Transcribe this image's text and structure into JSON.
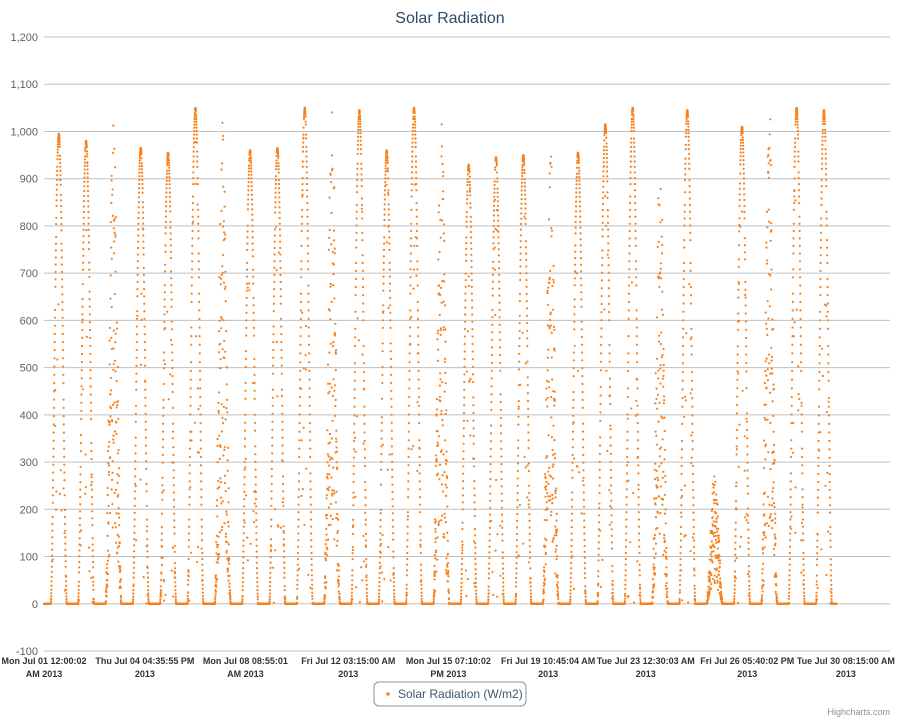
{
  "chart_data": {
    "type": "scatter",
    "title": "Solar Radiation",
    "xlabel": "",
    "ylabel": "",
    "ylim": [
      -100,
      1200
    ],
    "yticks": [
      -100,
      0,
      100,
      200,
      300,
      400,
      500,
      600,
      700,
      800,
      900,
      1000,
      1100,
      1200
    ],
    "ytick_labels": [
      "-100",
      "0",
      "100",
      "200",
      "300",
      "400",
      "500",
      "600",
      "700",
      "800",
      "900",
      "1,000",
      "1,100",
      "1,200"
    ],
    "x_range": [
      "2013-07-01 00:00",
      "2013-07-31 23:00"
    ],
    "xticks": [
      {
        "x": "2013-07-01 00:00",
        "line1": "Mon Jul 01 12:00:02",
        "line2": "AM 2013"
      },
      {
        "x": "2013-07-04 16:35",
        "line1": "Thu Jul 04 04:35:55 PM",
        "line2": "2013"
      },
      {
        "x": "2013-07-08 08:55",
        "line1": "Mon Jul 08 08:55:01",
        "line2": "AM 2013"
      },
      {
        "x": "2013-07-12 03:15",
        "line1": "Fri Jul 12 03:15:00 AM",
        "line2": "2013"
      },
      {
        "x": "2013-07-15 19:10",
        "line1": "Mon Jul 15 07:10:02",
        "line2": "PM 2013"
      },
      {
        "x": "2013-07-19 10:45",
        "line1": "Fri Jul 19 10:45:04 AM",
        "line2": "2013"
      },
      {
        "x": "2013-07-23 00:30",
        "line1": "Tue Jul 23 12:30:03 AM",
        "line2": "2013"
      },
      {
        "x": "2013-07-26 17:40",
        "line1": "Fri Jul 26 05:40:02 PM",
        "line2": "2013"
      },
      {
        "x": "2013-07-30 08:15",
        "line1": "Tue Jul 30 08:15:00 AM",
        "line2": "2013"
      }
    ],
    "grid": true,
    "legend_position": "bottom-center",
    "series": [
      {
        "name": "Solar Radiation (W/m2)",
        "color": "#f7801e",
        "daily_peaks": [
          {
            "date": "2013-07-01",
            "peak": 995
          },
          {
            "date": "2013-07-02",
            "peak": 980
          },
          {
            "date": "2013-07-03",
            "peak": 1050
          },
          {
            "date": "2013-07-04",
            "peak": 965
          },
          {
            "date": "2013-07-05",
            "peak": 955
          },
          {
            "date": "2013-07-06",
            "peak": 1050
          },
          {
            "date": "2013-07-07",
            "peak": 1050
          },
          {
            "date": "2013-07-08",
            "peak": 960
          },
          {
            "date": "2013-07-09",
            "peak": 965
          },
          {
            "date": "2013-07-10",
            "peak": 1050
          },
          {
            "date": "2013-07-11",
            "peak": 1050
          },
          {
            "date": "2013-07-12",
            "peak": 1045
          },
          {
            "date": "2013-07-13",
            "peak": 960
          },
          {
            "date": "2013-07-14",
            "peak": 1050
          },
          {
            "date": "2013-07-15",
            "peak": 1050
          },
          {
            "date": "2013-07-16",
            "peak": 930
          },
          {
            "date": "2013-07-17",
            "peak": 945
          },
          {
            "date": "2013-07-18",
            "peak": 950
          },
          {
            "date": "2013-07-19",
            "peak": 955
          },
          {
            "date": "2013-07-20",
            "peak": 955
          },
          {
            "date": "2013-07-21",
            "peak": 1015
          },
          {
            "date": "2013-07-22",
            "peak": 1050
          },
          {
            "date": "2013-07-23",
            "peak": 935
          },
          {
            "date": "2013-07-24",
            "peak": 1045
          },
          {
            "date": "2013-07-25",
            "peak": 280
          },
          {
            "date": "2013-07-26",
            "peak": 1010
          },
          {
            "date": "2013-07-27",
            "peak": 1050
          },
          {
            "date": "2013-07-28",
            "peak": 1050
          },
          {
            "date": "2013-07-29",
            "peak": 1045
          }
        ]
      }
    ]
  },
  "credits": "Highcharts.com"
}
